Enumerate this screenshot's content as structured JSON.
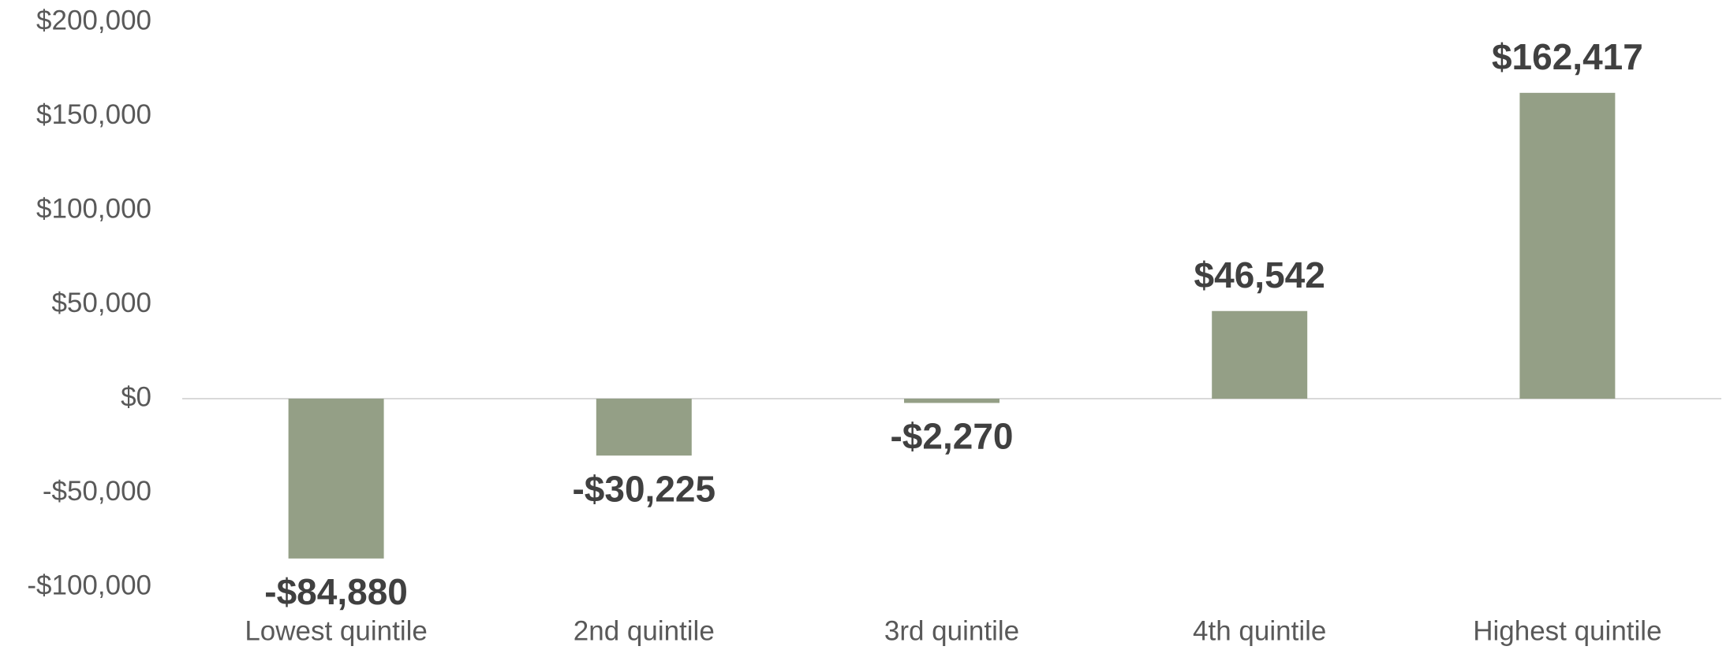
{
  "chart_data": {
    "type": "bar",
    "categories": [
      "Lowest quintile",
      "2nd quintile",
      "3rd quintile",
      "4th quintile",
      "Highest quintile"
    ],
    "values": [
      -84880,
      -30225,
      -2270,
      46542,
      162417
    ],
    "value_labels": [
      "-$84,880",
      "-$30,225",
      "-$2,270",
      "$46,542",
      "$162,417"
    ],
    "color": "#949f86",
    "ylim": [
      -100000,
      200000
    ],
    "yticks": [
      {
        "value": -100000,
        "label": "-$100,000"
      },
      {
        "value": -50000,
        "label": "-$50,000"
      },
      {
        "value": 0,
        "label": "$0"
      },
      {
        "value": 50000,
        "label": "$50,000"
      },
      {
        "value": 100000,
        "label": "$100,000"
      },
      {
        "value": 150000,
        "label": "$150,000"
      },
      {
        "value": 200000,
        "label": "$200,000"
      }
    ],
    "grid": false
  }
}
